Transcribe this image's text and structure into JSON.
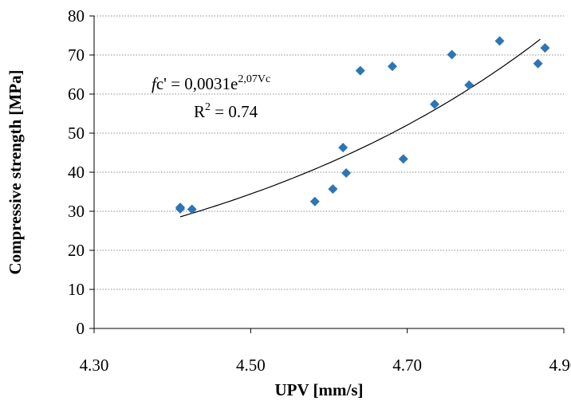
{
  "chart_data": {
    "type": "scatter",
    "xlabel": "UPV [mm/s]",
    "ylabel": "Compressive strength [MPa]",
    "xlim": [
      4.3,
      4.9
    ],
    "ylim": [
      0,
      80
    ],
    "x_ticks": [
      "4.30",
      "4.50",
      "4.70",
      "4.90"
    ],
    "y_ticks": [
      "0",
      "10",
      "20",
      "30",
      "40",
      "50",
      "60",
      "70",
      "80"
    ],
    "grid": "horizontal dotted",
    "marker_color": "#2e75b6",
    "trendline_color": "#000000",
    "points": [
      {
        "x": 4.41,
        "y": 31.0
      },
      {
        "x": 4.41,
        "y": 30.6
      },
      {
        "x": 4.425,
        "y": 30.5
      },
      {
        "x": 4.582,
        "y": 32.5
      },
      {
        "x": 4.605,
        "y": 35.7
      },
      {
        "x": 4.618,
        "y": 46.3
      },
      {
        "x": 4.622,
        "y": 39.8
      },
      {
        "x": 4.64,
        "y": 66.0
      },
      {
        "x": 4.681,
        "y": 67.1
      },
      {
        "x": 4.695,
        "y": 43.4
      },
      {
        "x": 4.735,
        "y": 57.4
      },
      {
        "x": 4.757,
        "y": 70.1
      },
      {
        "x": 4.779,
        "y": 62.3
      },
      {
        "x": 4.818,
        "y": 73.6
      },
      {
        "x": 4.867,
        "y": 67.8
      },
      {
        "x": 4.876,
        "y": 71.8
      }
    ],
    "trendline": {
      "type": "exponential",
      "a": 0.0031,
      "b": 2.07,
      "x_range": [
        4.41,
        4.87
      ],
      "equation": {
        "prefix_italic": "f",
        "prefix": "c' = 0,0031e",
        "exponent": "2,07Vc"
      },
      "r_squared": {
        "label": "R",
        "sup": "2",
        "value": " = 0.74"
      }
    }
  }
}
